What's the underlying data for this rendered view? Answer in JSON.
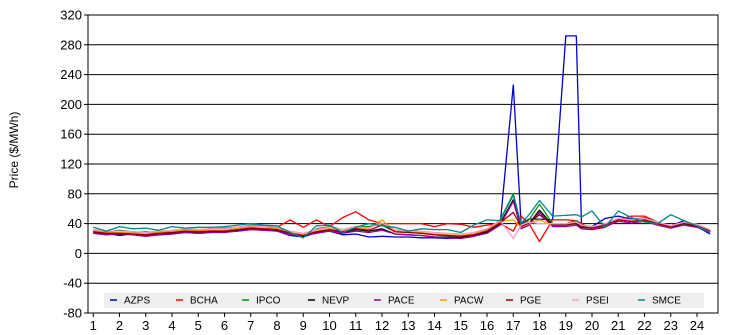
{
  "chart_data": {
    "type": "line",
    "title": "",
    "xlabel": "",
    "ylabel": "Price ($/MWh)",
    "ylim": [
      -80,
      320
    ],
    "yticks": [
      320,
      280,
      240,
      200,
      160,
      120,
      80,
      40,
      0,
      -40,
      -80
    ],
    "xlim": [
      0.8,
      24.8
    ],
    "xticks": [
      1,
      2,
      3,
      4,
      5,
      6,
      7,
      8,
      9,
      10,
      11,
      12,
      13,
      14,
      15,
      16,
      17,
      18,
      19,
      20,
      21,
      22,
      23,
      24
    ],
    "grid": "horizontal",
    "legend_position": "bottom-inside",
    "x": [
      1,
      1.5,
      2,
      2.5,
      3,
      3.5,
      4,
      4.5,
      5,
      5.5,
      6,
      6.5,
      7,
      7.5,
      8,
      8.5,
      9,
      9.5,
      10,
      10.5,
      11,
      11.5,
      12,
      12.5,
      13,
      13.5,
      14,
      14.5,
      15,
      15.5,
      16,
      16.5,
      17,
      17.3,
      17.6,
      18,
      18.5,
      19,
      19.4,
      19.6,
      20,
      20.5,
      21,
      21.5,
      22,
      22.5,
      23,
      23.5,
      24,
      24.5
    ],
    "series": [
      {
        "name": "AZPS",
        "color": "#0000CC",
        "values": [
          29,
          27,
          24,
          26,
          24,
          25,
          26,
          28,
          27,
          28,
          29,
          30,
          32,
          33,
          30,
          24,
          22,
          28,
          30,
          25,
          26,
          22,
          23,
          22,
          22,
          21,
          21,
          20,
          21,
          23,
          30,
          38,
          226,
          40,
          46,
          46,
          45,
          292,
          292,
          38,
          36,
          47,
          50,
          46,
          47,
          40,
          37,
          44,
          36,
          26
        ]
      },
      {
        "name": "BCHA",
        "color": "#FF0000",
        "values": [
          30,
          28,
          27,
          28,
          29,
          28,
          30,
          32,
          31,
          33,
          34,
          35,
          36,
          33,
          35,
          45,
          35,
          45,
          36,
          48,
          56,
          45,
          40,
          40,
          40,
          40,
          36,
          40,
          39,
          35,
          38,
          40,
          30,
          50,
          40,
          16,
          45,
          45,
          44,
          40,
          32,
          35,
          45,
          50,
          50,
          42,
          35,
          42,
          38,
          30
        ]
      },
      {
        "name": "IPCO",
        "color": "#009900",
        "values": [
          31,
          29,
          31,
          29,
          28,
          30,
          30,
          33,
          32,
          33,
          33,
          35,
          38,
          37,
          35,
          28,
          22,
          33,
          36,
          32,
          36,
          36,
          40,
          30,
          28,
          28,
          25,
          24,
          22,
          26,
          32,
          45,
          80,
          37,
          45,
          66,
          40,
          40,
          44,
          37,
          35,
          36,
          47,
          45,
          48,
          42,
          36,
          42,
          38,
          30
        ]
      },
      {
        "name": "NEVP",
        "color": "#000000",
        "values": [
          28,
          26,
          25,
          26,
          24,
          25,
          27,
          29,
          28,
          29,
          30,
          31,
          33,
          32,
          31,
          25,
          23,
          28,
          32,
          28,
          32,
          30,
          33,
          26,
          25,
          24,
          22,
          22,
          21,
          24,
          28,
          40,
          72,
          35,
          40,
          58,
          38,
          38,
          40,
          35,
          34,
          38,
          45,
          43,
          45,
          40,
          35,
          40,
          36,
          29
        ]
      },
      {
        "name": "PACE",
        "color": "#990099",
        "values": [
          27,
          25,
          26,
          25,
          23,
          25,
          26,
          28,
          27,
          28,
          28,
          30,
          32,
          31,
          30,
          25,
          24,
          27,
          30,
          27,
          30,
          28,
          31,
          26,
          25,
          24,
          22,
          21,
          20,
          23,
          27,
          38,
          70,
          33,
          38,
          55,
          36,
          36,
          38,
          33,
          32,
          36,
          43,
          41,
          43,
          38,
          34,
          38,
          35,
          28
        ]
      },
      {
        "name": "PACW",
        "color": "#FF9900",
        "values": [
          30,
          28,
          28,
          27,
          26,
          28,
          29,
          31,
          30,
          31,
          31,
          33,
          35,
          34,
          33,
          28,
          25,
          30,
          33,
          30,
          34,
          33,
          45,
          30,
          29,
          28,
          26,
          25,
          24,
          26,
          31,
          43,
          45,
          35,
          40,
          45,
          38,
          38,
          41,
          36,
          34,
          38,
          45,
          44,
          46,
          40,
          36,
          41,
          37,
          30
        ]
      },
      {
        "name": "PGE",
        "color": "#990000",
        "values": [
          29,
          27,
          27,
          26,
          25,
          27,
          28,
          30,
          29,
          30,
          30,
          32,
          34,
          33,
          32,
          27,
          24,
          29,
          32,
          29,
          33,
          31,
          38,
          29,
          28,
          27,
          25,
          24,
          23,
          25,
          30,
          41,
          55,
          36,
          41,
          52,
          38,
          38,
          41,
          36,
          34,
          38,
          45,
          43,
          45,
          40,
          36,
          41,
          37,
          30
        ]
      },
      {
        "name": "PSEI",
        "color": "#FF99CC",
        "values": [
          32,
          30,
          30,
          29,
          28,
          30,
          31,
          33,
          32,
          33,
          33,
          35,
          37,
          36,
          35,
          30,
          27,
          32,
          35,
          32,
          36,
          34,
          41,
          32,
          31,
          30,
          28,
          27,
          26,
          28,
          33,
          44,
          20,
          38,
          42,
          40,
          40,
          40,
          42,
          38,
          36,
          40,
          47,
          45,
          47,
          42,
          37,
          42,
          39,
          32
        ]
      },
      {
        "name": "SMCE",
        "color": "#008888",
        "values": [
          35,
          30,
          36,
          33,
          34,
          31,
          36,
          34,
          35,
          35,
          36,
          38,
          40,
          38,
          37,
          28,
          21,
          37,
          38,
          28,
          35,
          40,
          37,
          35,
          30,
          33,
          32,
          32,
          28,
          38,
          45,
          44,
          78,
          40,
          52,
          71,
          50,
          51,
          52,
          49,
          57,
          35,
          57,
          48,
          42,
          40,
          52,
          44,
          37,
          28
        ]
      }
    ]
  }
}
